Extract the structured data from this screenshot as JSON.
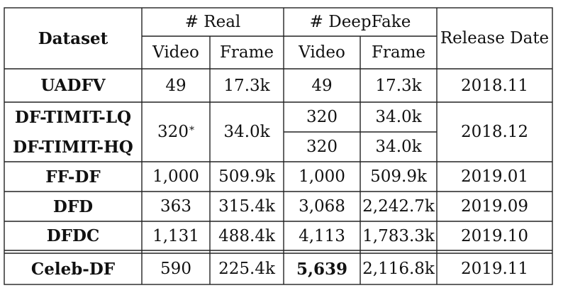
{
  "table": {
    "header": {
      "dataset": "Dataset",
      "real": "# Real",
      "deepfake": "# DeepFake",
      "release_date": "Release Date",
      "video": "Video",
      "frame": "Frame"
    },
    "rows": [
      {
        "dataset": "UADFV",
        "real_video": "49",
        "real_frame": "17.3k",
        "fake_video": "49",
        "fake_frame": "17.3k",
        "date": "2018.11"
      },
      {
        "dataset": "DF-TIMIT-LQ",
        "real_video": "320",
        "real_video_mark": "*",
        "real_frame": "34.0k",
        "fake_video": "320",
        "fake_frame": "34.0k",
        "date": "2018.12"
      },
      {
        "dataset": "DF-TIMIT-HQ",
        "fake_video": "320",
        "fake_frame": "34.0k"
      },
      {
        "dataset": "FF-DF",
        "real_video": "1,000",
        "real_frame": "509.9k",
        "fake_video": "1,000",
        "fake_frame": "509.9k",
        "date": "2019.01"
      },
      {
        "dataset": "DFD",
        "real_video": "363",
        "real_frame": "315.4k",
        "fake_video": "3,068",
        "fake_frame": "2,242.7k",
        "date": "2019.09"
      },
      {
        "dataset": "DFDC",
        "real_video": "1,131",
        "real_frame": "488.4k",
        "fake_video": "4,113",
        "fake_frame": "1,783.3k",
        "date": "2019.10"
      },
      {
        "dataset": "Celeb-DF",
        "real_video": "590",
        "real_frame": "225.4k",
        "fake_video": "5,639",
        "fake_video_bold": true,
        "fake_frame": "2,116.8k",
        "date": "2019.11"
      }
    ]
  }
}
